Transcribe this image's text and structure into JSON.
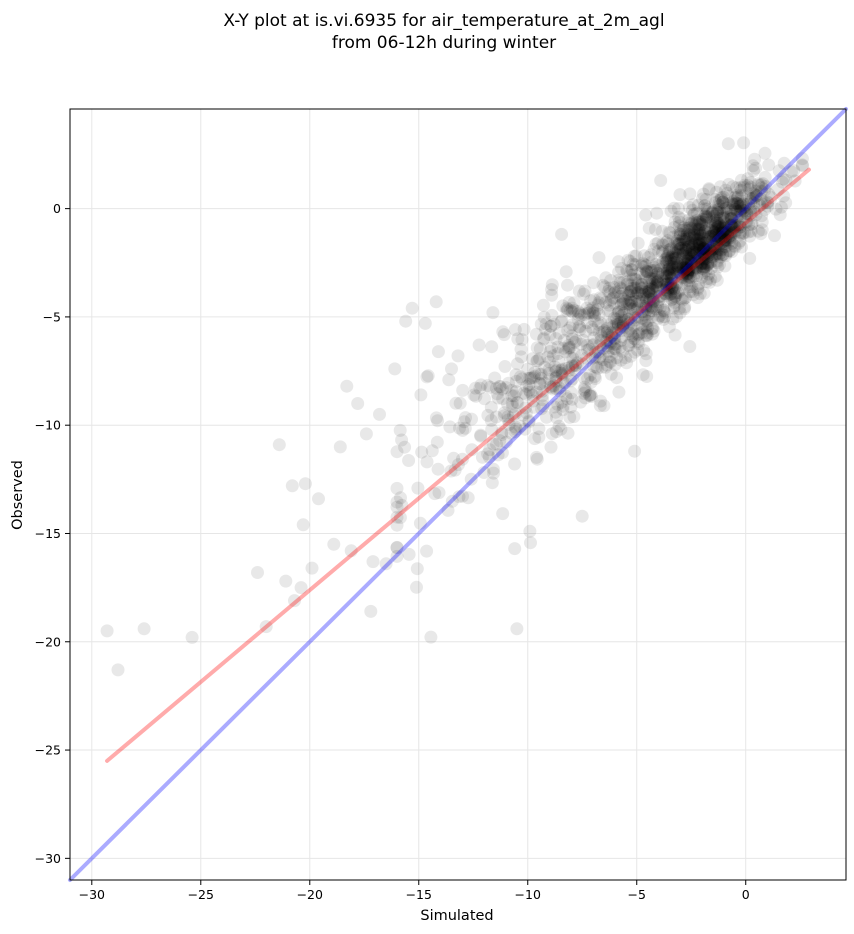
{
  "chart_data": {
    "type": "scatter",
    "title_lines": [
      "X-Y plot at is.vi.6935 for air_temperature_at_2m_agl",
      "from 06-12h during winter"
    ],
    "xlabel": "Simulated",
    "ylabel": "Observed",
    "xlim": [
      -31,
      4.6
    ],
    "ylim": [
      -31,
      4.6
    ],
    "xticks": [
      -30,
      -25,
      -20,
      -15,
      -10,
      -5,
      0
    ],
    "yticks": [
      -30,
      -25,
      -20,
      -15,
      -10,
      -5,
      0
    ],
    "xtick_labels": [
      "−30",
      "−25",
      "−20",
      "−15",
      "−10",
      "−5",
      "0"
    ],
    "ytick_labels": [
      "−30",
      "−25",
      "−20",
      "−15",
      "−10",
      "−5",
      "0"
    ],
    "grid": true,
    "point_color": "#000000",
    "identity_line": {
      "color": "#0000ff",
      "x": [
        -31,
        4.6
      ],
      "y": [
        -31,
        4.6
      ]
    },
    "fit_line": {
      "color": "#ff0000",
      "x": [
        -29.3,
        2.9
      ],
      "y": [
        -25.5,
        1.8
      ]
    },
    "outliers": [
      [
        -29.3,
        -19.5
      ],
      [
        -28.8,
        -21.3
      ],
      [
        -27.6,
        -19.4
      ],
      [
        -25.4,
        -19.8
      ],
      [
        -22.4,
        -16.8
      ],
      [
        -21.1,
        -17.2
      ],
      [
        -20.7,
        -18.1
      ],
      [
        -20.4,
        -17.5
      ],
      [
        -22.0,
        -19.3
      ],
      [
        -17.2,
        -18.6
      ],
      [
        -10.5,
        -19.4
      ],
      [
        -21.4,
        -10.9
      ],
      [
        -20.8,
        -12.8
      ],
      [
        -18.3,
        -8.2
      ],
      [
        -17.8,
        -9.0
      ],
      [
        -16.8,
        -9.5
      ],
      [
        -16.1,
        -7.4
      ],
      [
        -14.9,
        -8.6
      ],
      [
        -14.2,
        -4.3
      ],
      [
        -15.3,
        -4.6
      ],
      [
        -13.5,
        -7.4
      ],
      [
        -13.2,
        -6.8
      ],
      [
        -11.6,
        -4.8
      ],
      [
        -8.9,
        -4.0
      ],
      [
        -17.4,
        -10.4
      ],
      [
        -18.6,
        -11.0
      ],
      [
        -19.6,
        -13.4
      ],
      [
        -20.3,
        -14.6
      ],
      [
        -15.6,
        -5.2
      ],
      [
        -14.7,
        -5.3
      ],
      [
        -14.1,
        -6.6
      ],
      [
        -19.9,
        -16.6
      ],
      [
        -18.9,
        -15.5
      ],
      [
        -20.2,
        -12.7
      ],
      [
        -10.6,
        -15.7
      ],
      [
        -9.9,
        -14.9
      ],
      [
        -7.5,
        -14.2
      ],
      [
        -16.5,
        -16.4
      ],
      [
        -18.1,
        -15.8
      ],
      [
        -17.1,
        -16.3
      ],
      [
        -3.9,
        1.3
      ],
      [
        -0.8,
        3.0
      ],
      [
        -5.1,
        -11.2
      ],
      [
        -6.5,
        -9.1
      ]
    ],
    "cluster": {
      "n_points": 1500,
      "x_range": [
        -16,
        2.6
      ],
      "relation": "y = -0.05 + 0.84 * x",
      "x_distribution_weights": {
        "dense_near": -2,
        "spread": 4.5
      },
      "y_noise_sd": {
        "at_x_0": 0.8,
        "at_x_-15": 2.2
      }
    }
  }
}
